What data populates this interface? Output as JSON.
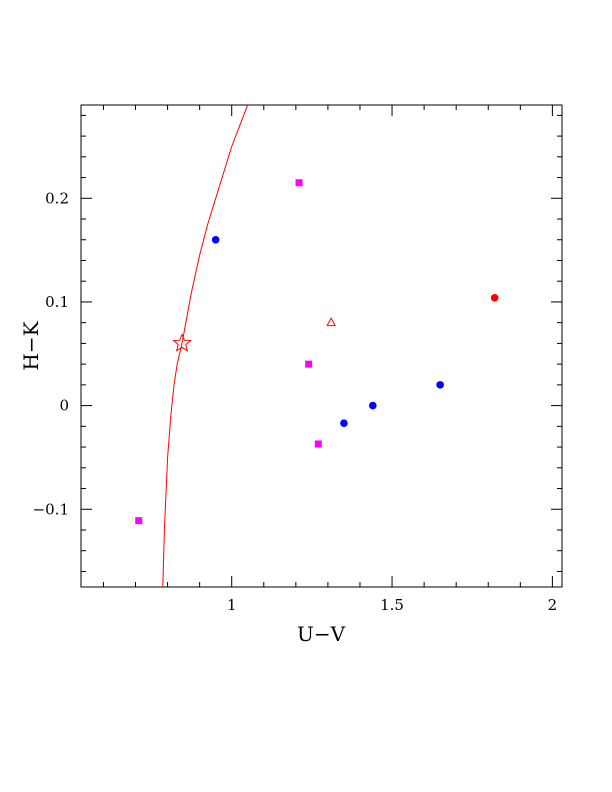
{
  "chart_data": {
    "type": "scatter",
    "title": "",
    "xlabel": "U−V",
    "ylabel": "H−K",
    "xlim": [
      0.53,
      2.03
    ],
    "ylim": [
      -0.175,
      0.29
    ],
    "x_ticks": [
      {
        "value": 1,
        "label": "1"
      },
      {
        "value": 1.5,
        "label": "1.5"
      },
      {
        "value": 2,
        "label": "2"
      }
    ],
    "y_ticks": [
      {
        "value": 0.2,
        "label": "0.2"
      },
      {
        "value": 0.1,
        "label": "0.1"
      },
      {
        "value": 0,
        "label": "0"
      },
      {
        "value": -0.1,
        "label": "−0.1"
      }
    ],
    "grid": false,
    "series": [
      {
        "marker": "square",
        "color": "#ff00ff",
        "points": [
          [
            1.21,
            0.215
          ],
          [
            1.24,
            0.04
          ],
          [
            1.27,
            -0.037
          ],
          [
            0.71,
            -0.111
          ]
        ]
      },
      {
        "marker": "circle",
        "color": "#0000ff",
        "points": [
          [
            0.95,
            0.16
          ],
          [
            1.35,
            -0.017
          ],
          [
            1.44,
            0.0
          ],
          [
            1.65,
            0.02
          ]
        ]
      },
      {
        "marker": "circle",
        "color": "#ff0000",
        "points": [
          [
            1.82,
            0.104
          ]
        ]
      },
      {
        "marker": "open-triangle",
        "color": "#ff0000",
        "points": [
          [
            1.31,
            0.08
          ]
        ]
      },
      {
        "marker": "open-star",
        "color": "#ff0000",
        "points": [
          [
            0.845,
            0.06
          ]
        ]
      },
      {
        "type": "line",
        "color": "#ff0000",
        "points": [
          [
            0.785,
            -0.175
          ],
          [
            0.79,
            -0.12
          ],
          [
            0.8,
            -0.05
          ],
          [
            0.81,
            -0.01
          ],
          [
            0.82,
            0.02
          ],
          [
            0.83,
            0.04
          ],
          [
            0.845,
            0.06
          ],
          [
            0.86,
            0.085
          ],
          [
            0.875,
            0.11
          ],
          [
            0.9,
            0.145
          ],
          [
            0.925,
            0.175
          ],
          [
            0.95,
            0.2
          ],
          [
            0.975,
            0.225
          ],
          [
            1.0,
            0.25
          ],
          [
            1.025,
            0.27
          ],
          [
            1.05,
            0.29
          ]
        ]
      }
    ]
  }
}
